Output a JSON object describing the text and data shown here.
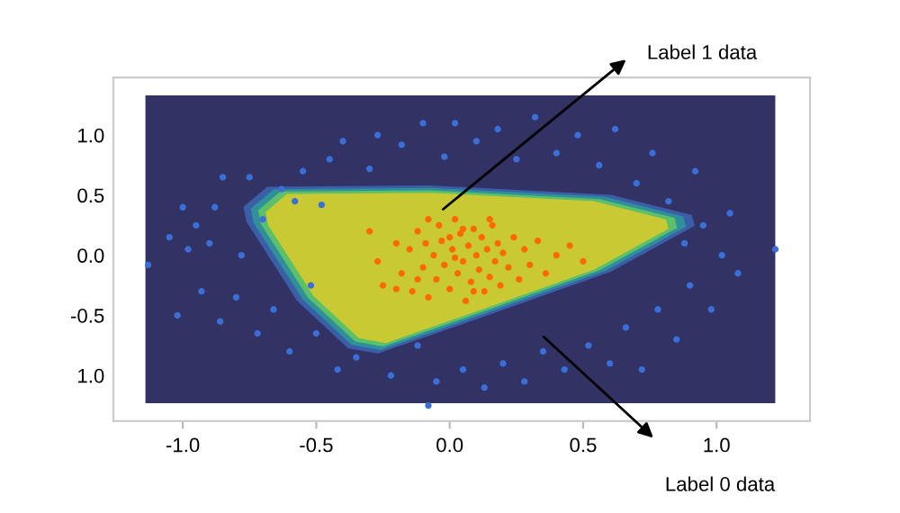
{
  "chart_data": {
    "type": "scatter",
    "marker": "circle",
    "xlim": [
      -1.26,
      1.35
    ],
    "ylim": [
      -1.38,
      1.48
    ],
    "xticks": [
      {
        "value": -1.0,
        "label": "-1.0"
      },
      {
        "value": -0.5,
        "label": "-0.5"
      },
      {
        "value": 0.0,
        "label": "0.0"
      },
      {
        "value": 0.5,
        "label": "0.5"
      },
      {
        "value": 1.0,
        "label": "1.0"
      }
    ],
    "yticks": [
      {
        "value": 1.0,
        "label": "1.0"
      },
      {
        "value": 0.5,
        "label": "0.5"
      },
      {
        "value": 0.0,
        "label": "0.0"
      },
      {
        "value": -0.5,
        "label": "-0.5"
      },
      {
        "value": -1.0,
        "label": "1.0"
      }
    ],
    "annotations": [
      "Label 1 data",
      "Label 0 data"
    ],
    "series": [
      {
        "color": "#3a6fd8",
        "x": [
          -1.13,
          -1.05,
          -1.02,
          -1.0,
          -0.98,
          -0.95,
          -0.93,
          -0.9,
          -0.88,
          -0.86,
          -0.85,
          -0.8,
          -0.78,
          -0.75,
          -0.72,
          -0.7,
          -0.66,
          -0.63,
          -0.6,
          -0.58,
          -0.55,
          -0.52,
          -0.5,
          -0.48,
          -0.45,
          -0.42,
          -0.4,
          -0.35,
          -0.3,
          -0.27,
          -0.22,
          -0.18,
          -0.12,
          -0.1,
          -0.05,
          -0.02,
          0.02,
          0.05,
          0.1,
          0.13,
          0.18,
          0.2,
          0.25,
          0.28,
          0.32,
          0.35,
          0.4,
          0.43,
          0.48,
          0.52,
          0.56,
          0.6,
          0.62,
          0.66,
          0.7,
          0.72,
          0.76,
          0.78,
          0.82,
          0.85,
          0.88,
          0.9,
          0.92,
          0.95,
          0.98,
          1.02,
          1.05,
          1.08,
          1.22,
          -0.08
        ],
        "values": [
          -0.08,
          0.15,
          -0.5,
          0.4,
          0.05,
          0.25,
          -0.3,
          0.1,
          0.4,
          -0.55,
          0.65,
          -0.35,
          0.0,
          0.65,
          -0.65,
          0.3,
          -0.45,
          0.55,
          -0.8,
          0.45,
          0.7,
          -0.25,
          -0.65,
          0.42,
          0.8,
          -0.95,
          0.95,
          -0.85,
          0.72,
          1.0,
          -1.0,
          0.92,
          -0.75,
          1.1,
          -1.05,
          0.82,
          1.1,
          -0.95,
          0.95,
          -1.1,
          1.05,
          -0.9,
          0.8,
          -1.05,
          1.15,
          -0.8,
          0.85,
          -0.95,
          1.0,
          -0.75,
          0.75,
          -0.9,
          1.05,
          -0.6,
          0.6,
          -0.95,
          0.85,
          -0.45,
          0.45,
          -0.7,
          0.1,
          -0.25,
          0.7,
          0.25,
          -0.45,
          0.0,
          0.35,
          -0.15,
          0.05,
          -1.25
        ]
      },
      {
        "color": "#ff6a00",
        "x": [
          -0.3,
          -0.27,
          -0.25,
          -0.2,
          -0.18,
          -0.15,
          -0.14,
          -0.12,
          -0.1,
          -0.09,
          -0.08,
          -0.06,
          -0.05,
          -0.04,
          -0.03,
          -0.02,
          0.0,
          0.01,
          0.02,
          0.03,
          0.04,
          0.05,
          0.06,
          0.07,
          0.08,
          0.09,
          0.1,
          0.11,
          0.12,
          0.13,
          0.14,
          0.15,
          0.16,
          0.17,
          0.18,
          0.19,
          0.2,
          0.22,
          0.24,
          0.26,
          0.28,
          0.3,
          0.33,
          0.36,
          0.4,
          0.45,
          0.5,
          -0.08,
          0.0,
          0.05,
          -0.12,
          0.02,
          0.09,
          0.15,
          -0.2
        ],
        "values": [
          0.2,
          -0.05,
          -0.25,
          0.1,
          -0.15,
          0.05,
          -0.3,
          0.2,
          -0.1,
          0.1,
          -0.35,
          0.0,
          -0.2,
          0.25,
          0.12,
          -0.08,
          -0.28,
          0.05,
          0.3,
          -0.15,
          0.18,
          -0.05,
          -0.38,
          0.08,
          -0.22,
          0.22,
          0.0,
          -0.12,
          0.15,
          -0.3,
          0.05,
          -0.18,
          0.25,
          -0.05,
          0.1,
          -0.25,
          0.02,
          -0.1,
          0.15,
          -0.2,
          0.05,
          -0.08,
          0.12,
          -0.15,
          0.0,
          0.08,
          -0.05,
          0.3,
          0.15,
          0.22,
          -0.2,
          -0.02,
          -0.3,
          0.3,
          -0.28
        ]
      }
    ]
  }
}
